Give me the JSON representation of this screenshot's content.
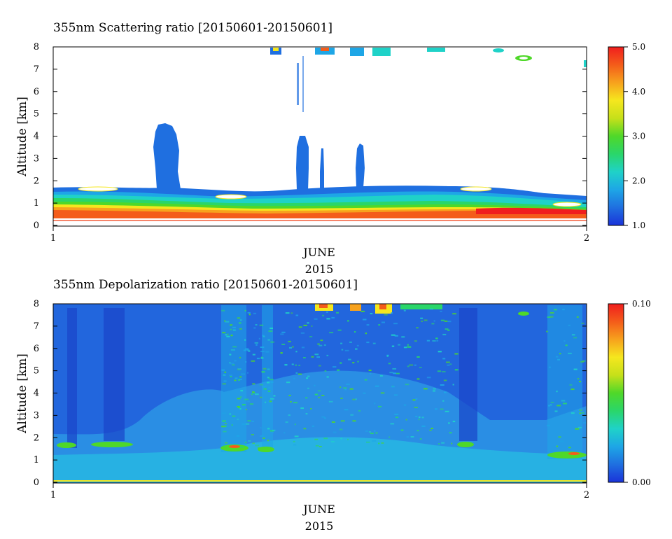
{
  "colors": {
    "scale": [
      "#1a33d9",
      "#1f6fe0",
      "#1ea6e6",
      "#1fd2c8",
      "#2ad66a",
      "#4fd829",
      "#c6e01a",
      "#f5e71e",
      "#f7a21d",
      "#f45c1a",
      "#f01e1e"
    ],
    "depol_background": "#2266dd",
    "surface_line": "#f03a12"
  },
  "chart_data": [
    {
      "type": "heatmap",
      "title": "355nm Scattering ratio [20150601-20150601]",
      "ylabel": "Altitude [km]",
      "xlabel": "JUNE",
      "xlabel2": "2015",
      "x_ticks": [
        "1",
        "2"
      ],
      "y_ticks": [
        "0",
        "1",
        "2",
        "3",
        "4",
        "5",
        "6",
        "7",
        "8"
      ],
      "ylim": [
        0,
        8
      ],
      "colorbar": {
        "min": 1.0,
        "max": 5.0,
        "labels": [
          "5.0",
          "4.0",
          "3.0",
          "2.0",
          "1.0"
        ]
      },
      "layers": [
        {
          "feature": "boundary layer aerosol",
          "x_start": 0.0,
          "x_end": 1.0,
          "base_km": 0.35,
          "top_km": 1.65,
          "peak_value": 5.0
        },
        {
          "feature": "plume",
          "x_center": 0.215,
          "base_km": 1.6,
          "top_km": 4.5,
          "value": 1.3
        },
        {
          "feature": "plume",
          "x_center": 0.465,
          "base_km": 1.6,
          "top_km": 4.1,
          "value": 1.3
        },
        {
          "feature": "plume",
          "x_center": 0.505,
          "base_km": 1.6,
          "top_km": 3.4,
          "value": 1.3
        },
        {
          "feature": "plume",
          "x_center": 0.575,
          "base_km": 1.7,
          "top_km": 3.6,
          "value": 1.4
        },
        {
          "feature": "high cloud",
          "x_start": 0.4,
          "x_end": 0.7,
          "base_km": 7.3,
          "top_km": 8.0,
          "value": 3.0
        }
      ]
    },
    {
      "type": "heatmap",
      "title": "355nm Depolarization ratio [20150601-20150601]",
      "ylabel": "Altitude [km]",
      "xlabel": "JUNE",
      "xlabel2": "2015",
      "x_ticks": [
        "1",
        "2"
      ],
      "y_ticks": [
        "0",
        "1",
        "2",
        "3",
        "4",
        "5",
        "6",
        "7",
        "8"
      ],
      "ylim": [
        0,
        8
      ],
      "colorbar": {
        "min": 0.0,
        "max": 0.1,
        "labels": [
          "0.10",
          "0.00"
        ]
      },
      "layers": [
        {
          "feature": "background",
          "value": 0.01
        },
        {
          "feature": "lower troposphere",
          "base_km": 0.0,
          "top_km": 4.5,
          "value": 0.02
        },
        {
          "feature": "cloud column",
          "x_center": 0.34,
          "base_km": 1.4,
          "top_km": 8.0,
          "value": 0.06
        },
        {
          "feature": "cloud column",
          "x_center": 0.395,
          "base_km": 1.4,
          "top_km": 8.0,
          "value": 0.05
        },
        {
          "feature": "cloud column",
          "x_center": 0.97,
          "base_km": 1.1,
          "top_km": 8.0,
          "value": 0.06
        },
        {
          "feature": "high cloud",
          "x_start": 0.4,
          "x_end": 0.72,
          "base_km": 7.4,
          "top_km": 8.0,
          "value": 0.09
        }
      ]
    }
  ]
}
